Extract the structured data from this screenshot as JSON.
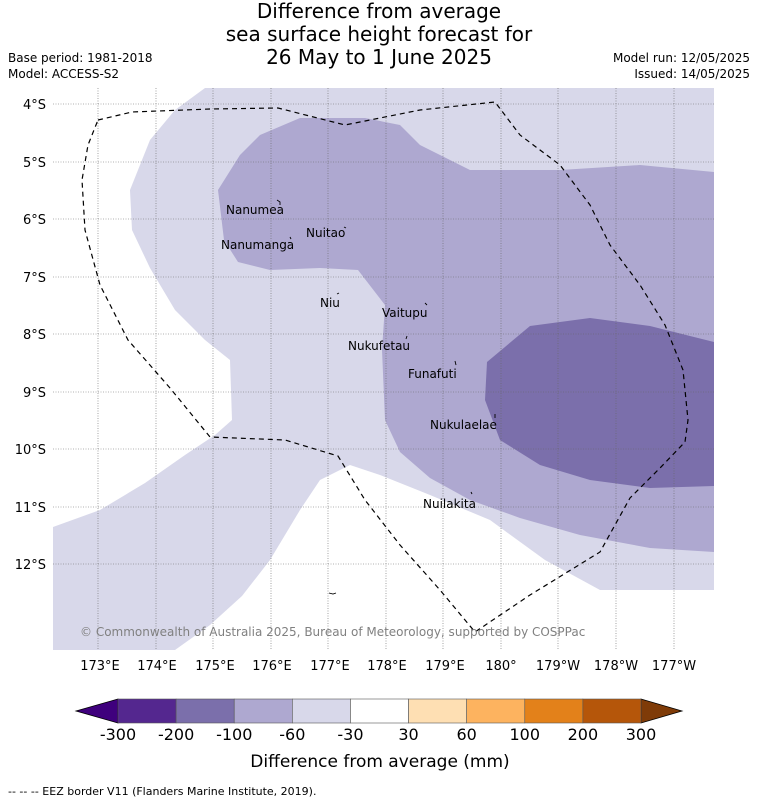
{
  "title": {
    "line1": "Difference from average",
    "line2": "sea surface height forecast for",
    "line3": "26 May to 1 June 2025"
  },
  "meta": {
    "base_period": "Base period: 1981-2018",
    "model": "Model: ACCESS-S2",
    "model_run": "Model run: 12/05/2025",
    "issued": "Issued: 14/05/2025"
  },
  "map": {
    "lat_ticks": [
      "4°S",
      "5°S",
      "6°S",
      "7°S",
      "8°S",
      "9°S",
      "10°S",
      "11°S",
      "12°S"
    ],
    "lon_ticks": [
      "173°E",
      "174°E",
      "175°E",
      "176°E",
      "177°E",
      "178°E",
      "179°E",
      "180°",
      "179°W",
      "178°W",
      "177°W"
    ],
    "places": [
      {
        "name": "Nanumea"
      },
      {
        "name": "Nuitao"
      },
      {
        "name": "Nanumanga"
      },
      {
        "name": "Niu"
      },
      {
        "name": "Vaitupu"
      },
      {
        "name": "Nukufetau"
      },
      {
        "name": "Funafuti"
      },
      {
        "name": "Nukulaelae"
      },
      {
        "name": "Nuilakita"
      }
    ],
    "copyright": "© Commonwealth of Australia 2025, Bureau of Meteorology, supported by COSPPac"
  },
  "colorbar": {
    "labels": [
      "-300",
      "-200",
      "-100",
      "-60",
      "-30",
      "30",
      "60",
      "100",
      "200",
      "300"
    ],
    "colors": [
      "#54278f",
      "#7b6fab",
      "#aea8d0",
      "#d8d8ea",
      "#ffffff",
      "#fedfb3",
      "#fdb35f",
      "#e3811a",
      "#b5560a"
    ],
    "under_color": "#3f007d",
    "over_color": "#7f3b08",
    "title": "Difference from average (mm)"
  },
  "footer": "-- -- -- EEZ border V11 (Flanders Marine Institute, 2019)."
}
